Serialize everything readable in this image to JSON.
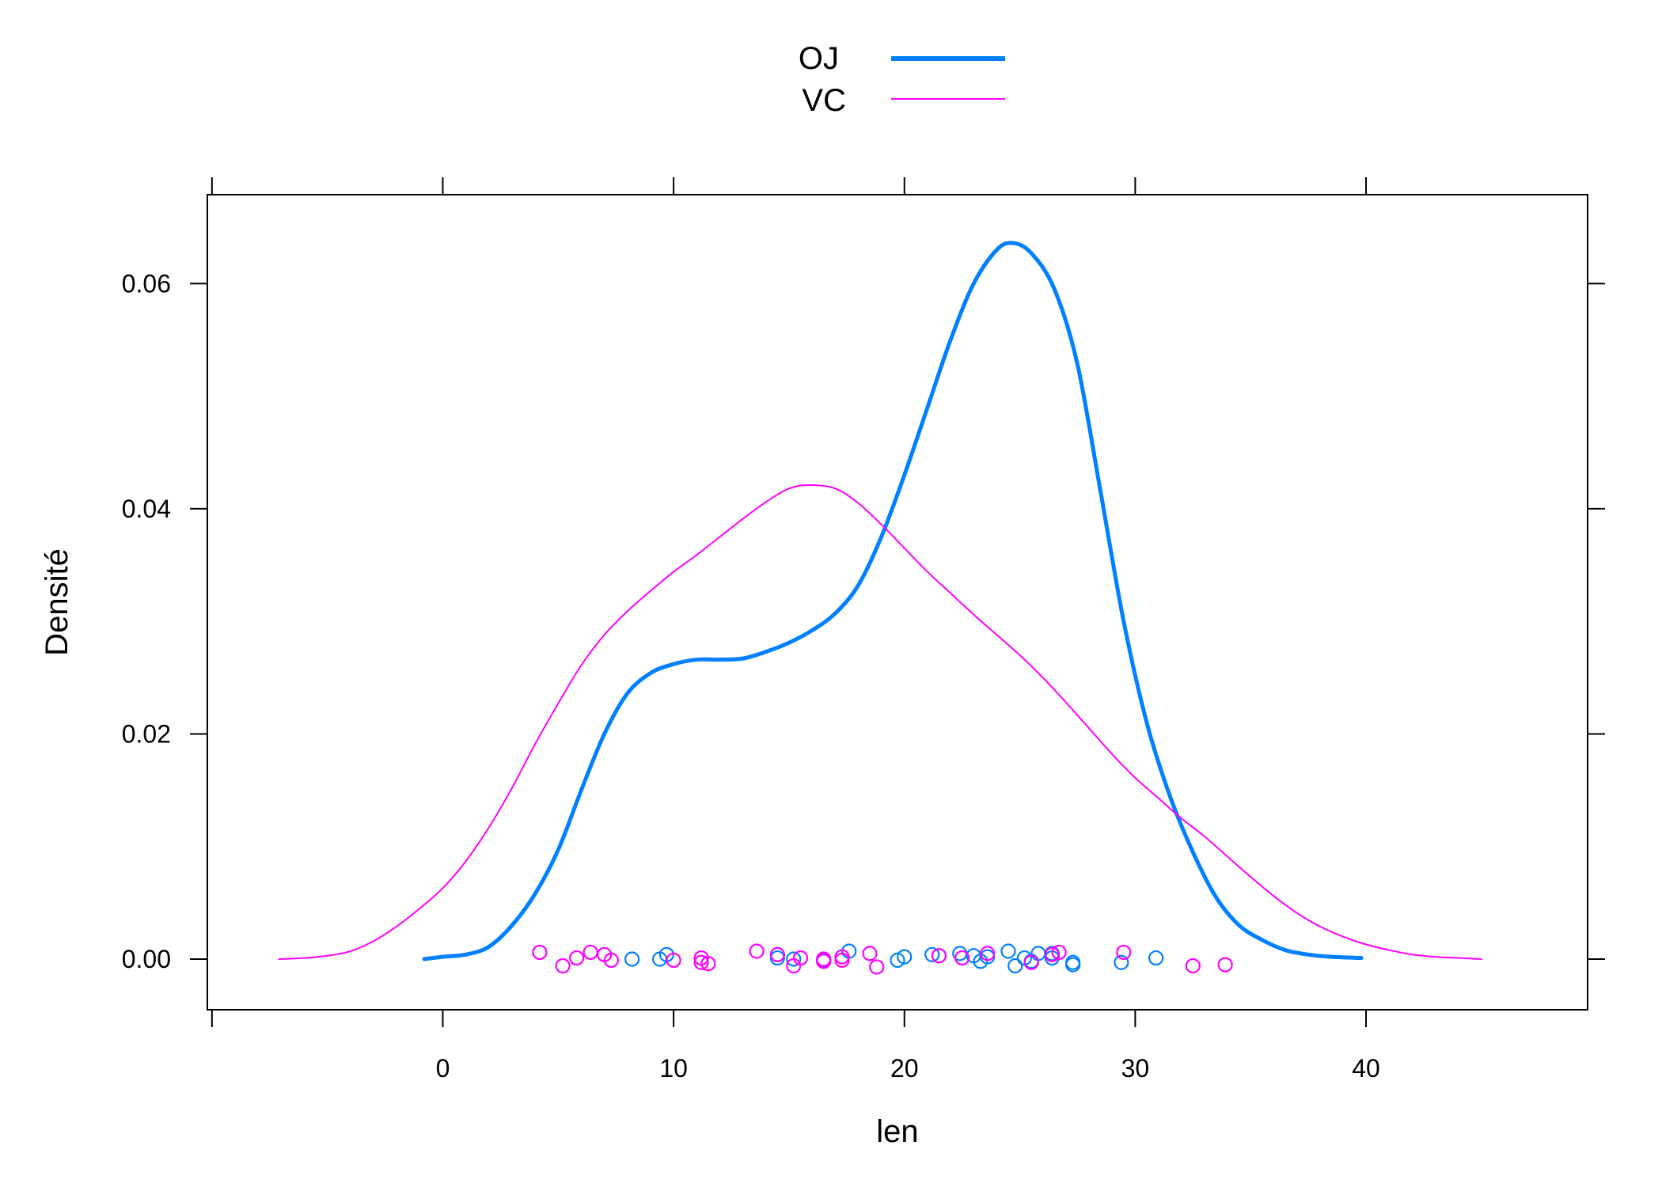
{
  "chart_data": {
    "type": "line",
    "title": "",
    "xlabel": "len",
    "ylabel": "Densité",
    "xlim": [
      -10.2,
      49.6
    ],
    "ylim": [
      -0.0045,
      0.0679
    ],
    "xticks": [
      0,
      10,
      20,
      30,
      40
    ],
    "xtick_labels": [
      "0",
      "10",
      "20",
      "30",
      "40"
    ],
    "yticks": [
      0.0,
      0.02,
      0.04,
      0.06
    ],
    "ytick_labels": [
      "0.00",
      "0.02",
      "0.04",
      "0.06"
    ],
    "grid": false,
    "legend_position": "top-center",
    "series": [
      {
        "name": "OJ",
        "color": "#0080ff",
        "line_width": "thick",
        "density_curve": [
          [
            -0.8,
            0.0
          ],
          [
            0.0,
            0.0002
          ],
          [
            1.0,
            0.0004
          ],
          [
            2.0,
            0.0011
          ],
          [
            3.0,
            0.003
          ],
          [
            4.0,
            0.0058
          ],
          [
            5.0,
            0.0097
          ],
          [
            6.0,
            0.015
          ],
          [
            7.0,
            0.02
          ],
          [
            8.0,
            0.0236
          ],
          [
            9.0,
            0.0254
          ],
          [
            10.0,
            0.0262
          ],
          [
            11.0,
            0.0266
          ],
          [
            12.0,
            0.0266
          ],
          [
            13.0,
            0.0267
          ],
          [
            14.0,
            0.0273
          ],
          [
            15.0,
            0.0281
          ],
          [
            16.0,
            0.0292
          ],
          [
            17.0,
            0.0307
          ],
          [
            18.0,
            0.0332
          ],
          [
            19.0,
            0.0375
          ],
          [
            20.0,
            0.043
          ],
          [
            21.0,
            0.049
          ],
          [
            22.0,
            0.055
          ],
          [
            23.0,
            0.06
          ],
          [
            24.0,
            0.063
          ],
          [
            24.7,
            0.0636
          ],
          [
            25.5,
            0.0627
          ],
          [
            26.5,
            0.0595
          ],
          [
            27.5,
            0.0528
          ],
          [
            28.5,
            0.0415
          ],
          [
            29.5,
            0.03
          ],
          [
            30.5,
            0.021
          ],
          [
            31.5,
            0.0145
          ],
          [
            32.5,
            0.0095
          ],
          [
            33.5,
            0.0055
          ],
          [
            34.5,
            0.003
          ],
          [
            35.5,
            0.0017
          ],
          [
            36.5,
            0.0008
          ],
          [
            37.5,
            0.0004
          ],
          [
            38.5,
            0.0002
          ],
          [
            39.8,
            0.0001
          ]
        ],
        "rug": [
          {
            "x": 8.2,
            "y": 0.0
          },
          {
            "x": 9.4,
            "y": 0.0
          },
          {
            "x": 9.7,
            "y": 0.0004
          },
          {
            "x": 14.5,
            "y": 0.0004
          },
          {
            "x": 14.5,
            "y": 0.0001
          },
          {
            "x": 15.2,
            "y": 0.0
          },
          {
            "x": 16.5,
            "y": -0.0001
          },
          {
            "x": 17.6,
            "y": 0.0007
          },
          {
            "x": 19.7,
            "y": -0.0001
          },
          {
            "x": 20.0,
            "y": 0.0002
          },
          {
            "x": 21.2,
            "y": 0.0004
          },
          {
            "x": 21.5,
            "y": 0.0003
          },
          {
            "x": 22.4,
            "y": 0.0005
          },
          {
            "x": 23.0,
            "y": 0.0003
          },
          {
            "x": 23.3,
            "y": -0.0002
          },
          {
            "x": 23.6,
            "y": 0.0002
          },
          {
            "x": 24.5,
            "y": 0.0007
          },
          {
            "x": 24.8,
            "y": -0.0006
          },
          {
            "x": 25.2,
            "y": 0.0001
          },
          {
            "x": 25.5,
            "y": -0.0002
          },
          {
            "x": 25.8,
            "y": 0.0005
          },
          {
            "x": 26.4,
            "y": 0.0005
          },
          {
            "x": 26.4,
            "y": 0.0001
          },
          {
            "x": 27.3,
            "y": -0.0003
          },
          {
            "x": 27.3,
            "y": -0.0005
          },
          {
            "x": 29.4,
            "y": -0.0003
          },
          {
            "x": 30.9,
            "y": 0.0001
          }
        ]
      },
      {
        "name": "VC",
        "color": "#ff00ff",
        "line_width": "thin",
        "density_curve": [
          [
            -7.1,
            0.0
          ],
          [
            -6.0,
            0.0001
          ],
          [
            -5.0,
            0.0003
          ],
          [
            -4.0,
            0.0007
          ],
          [
            -3.0,
            0.0016
          ],
          [
            -2.0,
            0.0029
          ],
          [
            -1.0,
            0.0045
          ],
          [
            0.0,
            0.0063
          ],
          [
            1.0,
            0.0087
          ],
          [
            2.0,
            0.0117
          ],
          [
            3.0,
            0.0152
          ],
          [
            4.0,
            0.0191
          ],
          [
            5.0,
            0.0227
          ],
          [
            6.0,
            0.0261
          ],
          [
            7.0,
            0.0288
          ],
          [
            8.0,
            0.0309
          ],
          [
            9.0,
            0.0327
          ],
          [
            10.0,
            0.0344
          ],
          [
            11.0,
            0.0359
          ],
          [
            12.0,
            0.0375
          ],
          [
            13.0,
            0.0391
          ],
          [
            14.0,
            0.0406
          ],
          [
            15.0,
            0.0418
          ],
          [
            15.9,
            0.0421
          ],
          [
            17.0,
            0.0418
          ],
          [
            18.0,
            0.0405
          ],
          [
            19.0,
            0.0386
          ],
          [
            20.0,
            0.0365
          ],
          [
            21.0,
            0.0344
          ],
          [
            22.0,
            0.0325
          ],
          [
            23.0,
            0.0306
          ],
          [
            24.0,
            0.0288
          ],
          [
            25.0,
            0.027
          ],
          [
            26.0,
            0.025
          ],
          [
            27.0,
            0.0228
          ],
          [
            28.0,
            0.0205
          ],
          [
            29.0,
            0.0182
          ],
          [
            30.0,
            0.0161
          ],
          [
            31.0,
            0.0143
          ],
          [
            32.0,
            0.0125
          ],
          [
            33.0,
            0.0109
          ],
          [
            34.0,
            0.0091
          ],
          [
            35.0,
            0.0073
          ],
          [
            36.0,
            0.0056
          ],
          [
            37.0,
            0.0041
          ],
          [
            38.0,
            0.0029
          ],
          [
            39.0,
            0.002
          ],
          [
            40.0,
            0.0013
          ],
          [
            41.0,
            0.0008
          ],
          [
            42.0,
            0.0004
          ],
          [
            43.0,
            0.0002
          ],
          [
            44.0,
            0.0001
          ],
          [
            45.0,
            0.0
          ]
        ],
        "rug": [
          {
            "x": 4.2,
            "y": 0.0006
          },
          {
            "x": 5.2,
            "y": -0.0006
          },
          {
            "x": 5.8,
            "y": 0.0001
          },
          {
            "x": 6.4,
            "y": 0.0006
          },
          {
            "x": 7.0,
            "y": 0.0004
          },
          {
            "x": 7.3,
            "y": -0.0001
          },
          {
            "x": 10.0,
            "y": -0.0001
          },
          {
            "x": 11.2,
            "y": 0.0001
          },
          {
            "x": 11.2,
            "y": -0.0003
          },
          {
            "x": 11.5,
            "y": -0.0004
          },
          {
            "x": 13.6,
            "y": 0.0007
          },
          {
            "x": 14.5,
            "y": 0.0004
          },
          {
            "x": 15.2,
            "y": -0.0006
          },
          {
            "x": 15.5,
            "y": 0.0001
          },
          {
            "x": 16.5,
            "y": -0.0002
          },
          {
            "x": 16.5,
            "y": 0.0
          },
          {
            "x": 17.3,
            "y": 0.0002
          },
          {
            "x": 17.3,
            "y": -0.0001
          },
          {
            "x": 18.5,
            "y": 0.0005
          },
          {
            "x": 18.8,
            "y": -0.0007
          },
          {
            "x": 21.5,
            "y": 0.0003
          },
          {
            "x": 22.5,
            "y": 0.0001
          },
          {
            "x": 23.6,
            "y": 0.0005
          },
          {
            "x": 25.5,
            "y": -0.0003
          },
          {
            "x": 26.4,
            "y": 0.0004
          },
          {
            "x": 26.7,
            "y": 0.0006
          },
          {
            "x": 29.5,
            "y": 0.0006
          },
          {
            "x": 32.5,
            "y": -0.0006
          },
          {
            "x": 33.9,
            "y": -0.0005
          }
        ]
      }
    ]
  }
}
